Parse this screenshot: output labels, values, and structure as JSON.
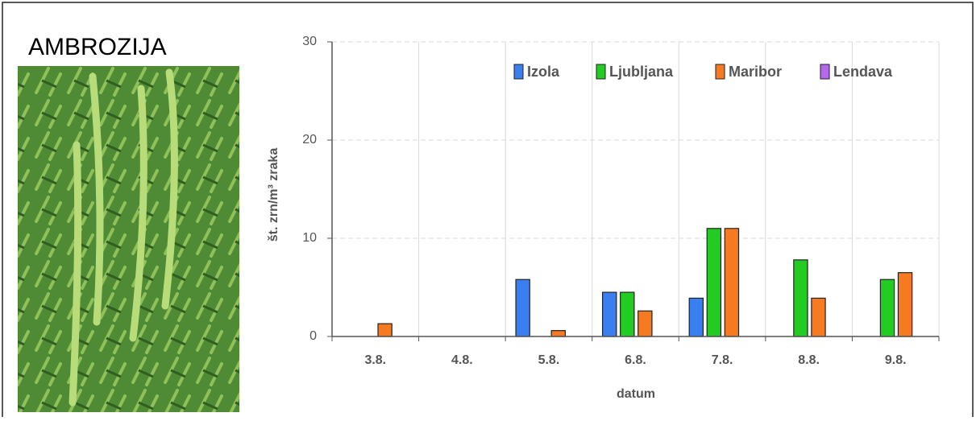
{
  "heading": "AMBROZIJA",
  "chart_data": {
    "type": "bar",
    "x_label": "datum",
    "y_label": "št. zrn/m³ zraka",
    "categories": [
      "3.8.",
      "4.8.",
      "5.8.",
      "6.8.",
      "7.8.",
      "8.8.",
      "9.8."
    ],
    "series": [
      {
        "name": "Izola",
        "color": "#3a7ff0",
        "values": [
          null,
          null,
          5.8,
          4.5,
          3.9,
          null,
          null
        ]
      },
      {
        "name": "Ljubljana",
        "color": "#22cc22",
        "values": [
          null,
          null,
          null,
          4.5,
          11,
          7.8,
          5.8
        ]
      },
      {
        "name": "Maribor",
        "color": "#f57a22",
        "values": [
          1.3,
          null,
          0.6,
          2.6,
          11,
          3.9,
          6.5
        ]
      },
      {
        "name": "Lendava",
        "color": "#b468ee",
        "values": [
          null,
          null,
          null,
          null,
          null,
          null,
          null
        ]
      }
    ],
    "ylim": [
      0,
      30
    ],
    "yticks": [
      0,
      10,
      20,
      30
    ],
    "grid": true,
    "legend": "top"
  }
}
